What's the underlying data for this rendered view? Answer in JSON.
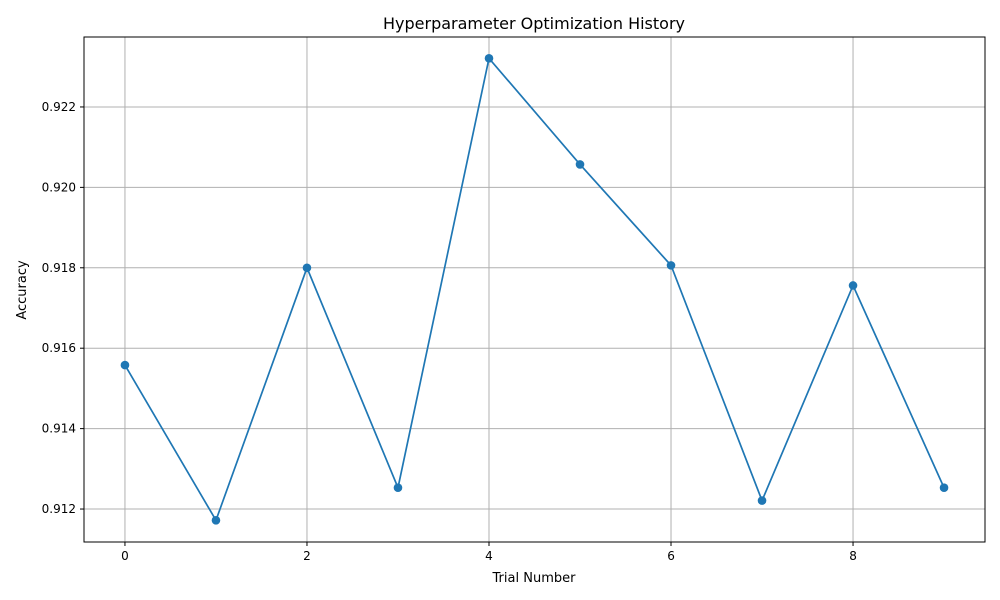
{
  "chart_data": {
    "type": "line",
    "title": "Hyperparameter Optimization History",
    "xlabel": "Trial Number",
    "ylabel": "Accuracy",
    "x": [
      0,
      1,
      2,
      3,
      4,
      5,
      6,
      7,
      8,
      9
    ],
    "series": [
      {
        "values": [
          0.91558,
          0.91172,
          0.918,
          0.91253,
          0.92321,
          0.92057,
          0.91806,
          0.91221,
          0.91756,
          0.91253
        ],
        "color": "#1f77b4",
        "marker": "circle"
      }
    ],
    "xlim": [
      -0.45,
      9.45
    ],
    "ylim": [
      0.91118,
      0.92374
    ],
    "xticks": [
      0,
      2,
      4,
      6,
      8
    ],
    "yticks": [
      0.912,
      0.914,
      0.916,
      0.918,
      0.92,
      0.922
    ],
    "xtick_labels": [
      "0",
      "2",
      "4",
      "6",
      "8"
    ],
    "ytick_labels": [
      "0.912",
      "0.914",
      "0.916",
      "0.918",
      "0.920",
      "0.922"
    ],
    "grid": true,
    "grid_color": "#b0b0b0",
    "axis_color": "#000000"
  }
}
